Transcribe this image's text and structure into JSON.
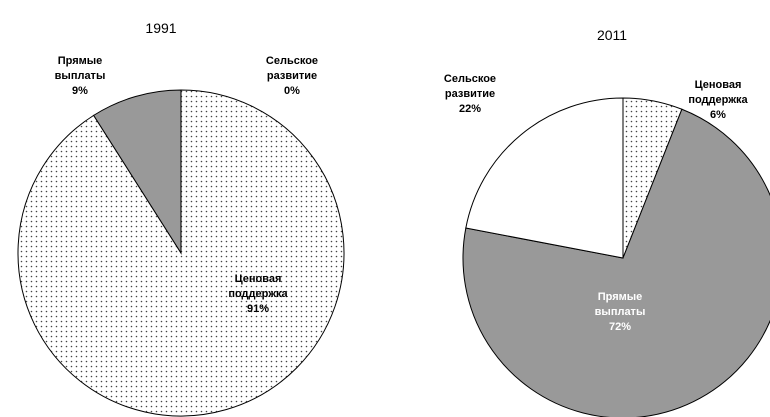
{
  "chart_data": [
    {
      "type": "pie",
      "title": "1991",
      "categories": [
        "Ценовая поддержка",
        "Прямые выплаты",
        "Сельское развитие"
      ],
      "values": [
        91,
        9,
        0
      ],
      "value_labels": [
        "91%",
        "9%",
        "0%"
      ],
      "colors": [
        "dots",
        "#999999",
        "#ffffff"
      ]
    },
    {
      "type": "pie",
      "title": "2011",
      "categories": [
        "Ценовая поддержка",
        "Прямые выплаты",
        "Сельское развитие"
      ],
      "values": [
        6,
        72,
        22
      ],
      "value_labels": [
        "6%",
        "72%",
        "22%"
      ],
      "colors": [
        "dots",
        "#999999",
        "#ffffff"
      ]
    }
  ]
}
